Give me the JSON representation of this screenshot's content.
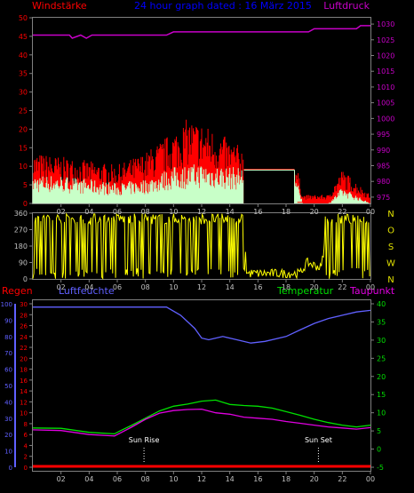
{
  "header": {
    "left_label": "Windstärke",
    "title": "24 hour graph dated : 16 März 2015",
    "right_label": "Luftdruck"
  },
  "colors": {
    "wind_avg": "#c8ffc8",
    "wind_gust": "#ff0000",
    "pressure": "#c800c8",
    "wind_dir": "#ffff00",
    "humidity": "#6060ff",
    "temperature": "#00e000",
    "dewpoint": "#e000e0",
    "rain": "#ff0000",
    "axis_grid": "#808080",
    "left_wind_text": "#ff0000",
    "right_pressure_text": "#c800c8",
    "rain_axis_text": "#ff0000",
    "hum_axis_text": "#6060ff",
    "temp_axis_text": "#00e000"
  },
  "chart_data": [
    {
      "type": "line",
      "name": "wind-pressure",
      "left_axis": {
        "label": "Windstärke",
        "ticks": [
          "0",
          "5",
          "10",
          "15",
          "20",
          "25",
          "30",
          "35",
          "40",
          "45",
          "50"
        ],
        "ylim": [
          0,
          50
        ]
      },
      "right_axis": {
        "label": "Luftdruck",
        "ticks": [
          "975",
          "980",
          "985",
          "990",
          "995",
          "1000",
          "1005",
          "1010",
          "1015",
          "1020",
          "1025",
          "1030"
        ],
        "ylim": [
          973,
          1032
        ]
      },
      "x_ticks": [
        "02",
        "04",
        "06",
        "08",
        "10",
        "12",
        "14",
        "16",
        "18",
        "20",
        "22",
        "00"
      ],
      "pressure": {
        "x": [
          0,
          2.6,
          2.8,
          3.4,
          3.8,
          4.2,
          9.5,
          10.0,
          16.0,
          19.6,
          20.0,
          23.0,
          23.3,
          24.0
        ],
        "y": [
          1026.5,
          1026.5,
          1025.5,
          1026.5,
          1025.5,
          1026.5,
          1026.5,
          1027.5,
          1027.5,
          1027.5,
          1028.5,
          1028.5,
          1029.5,
          1029.5
        ]
      },
      "wind_avg_envelope": {
        "x": [
          0,
          2,
          4,
          6,
          8,
          10,
          12,
          14,
          15,
          18.5,
          19.2,
          21,
          22,
          23,
          24
        ],
        "y": [
          7,
          7,
          6,
          5,
          6,
          9,
          10,
          9,
          9,
          9,
          0,
          0,
          4,
          2,
          0
        ]
      },
      "wind_gust_envelope": {
        "x": [
          0,
          2,
          4,
          6,
          8,
          10,
          11,
          12,
          13,
          14,
          15,
          18.5,
          19.2,
          21,
          22,
          23,
          24
        ],
        "y": [
          12,
          11,
          10,
          9,
          12,
          17,
          20,
          19,
          17,
          15,
          13,
          13,
          2,
          2,
          8,
          5,
          2
        ]
      },
      "wind_plateau": {
        "x_start": 15.0,
        "x_end": 18.6,
        "value": 9
      }
    },
    {
      "type": "line",
      "name": "wind-direction",
      "left_ticks": [
        "0",
        "90",
        "180",
        "270",
        "360"
      ],
      "right_labels": [
        "N",
        "W",
        "S",
        "O",
        "N"
      ],
      "ylim": [
        0,
        360
      ],
      "x_ticks": [
        "02",
        "04",
        "06",
        "08",
        "10",
        "12",
        "14",
        "16",
        "18",
        "20",
        "22",
        "00"
      ],
      "summary": {
        "x": [
          0,
          15,
          15.2,
          19.0,
          19.5,
          20.5,
          21,
          24
        ],
        "y": [
          340,
          340,
          30,
          30,
          90,
          60,
          340,
          340
        ]
      }
    },
    {
      "type": "line",
      "name": "weather",
      "header_labels": [
        "Regen",
        "Luftfeuchte",
        "Temperatur",
        "Taupunkt"
      ],
      "rain_axis": {
        "label": "Regen",
        "ticks": [
          "0",
          "2",
          "4",
          "6",
          "8",
          "10",
          "12",
          "14",
          "16",
          "18",
          "20",
          "22",
          "24",
          "26",
          "28",
          "30"
        ],
        "ylim": [
          0,
          30
        ]
      },
      "humidity_axis": {
        "label": "Luftfeuchte",
        "ticks": [
          "0",
          "10",
          "20",
          "30",
          "40",
          "50",
          "60",
          "70",
          "80",
          "90",
          "100"
        ],
        "ylim": [
          0,
          100
        ]
      },
      "temp_axis": {
        "label": "Temperatur",
        "ticks": [
          "-5",
          "0",
          "5",
          "10",
          "15",
          "20",
          "25",
          "30",
          "35",
          "40"
        ],
        "ylim": [
          -5,
          40
        ]
      },
      "x_ticks": [
        "02",
        "04",
        "06",
        "08",
        "10",
        "12",
        "14",
        "16",
        "18",
        "20",
        "22",
        "00"
      ],
      "humidity": {
        "x": [
          0,
          9.5,
          10.5,
          11.5,
          12.0,
          12.5,
          13.5,
          14.5,
          15.5,
          16.5,
          18.0,
          19.0,
          20.0,
          21.0,
          22.0,
          23.0,
          24.0
        ],
        "y": [
          98,
          98,
          93,
          85,
          79,
          78,
          80,
          78,
          76,
          77,
          80,
          84,
          88,
          91,
          93,
          95,
          96
        ]
      },
      "temperature": {
        "x": [
          0,
          2,
          4,
          5.8,
          6.2,
          7,
          8,
          9,
          10,
          11,
          12,
          13,
          14,
          15,
          16,
          17,
          18,
          19,
          20,
          21,
          22,
          23,
          24
        ],
        "y": [
          5.8,
          5.7,
          4.6,
          4.2,
          5.0,
          6.5,
          8.5,
          10.5,
          11.8,
          12.4,
          13.2,
          13.5,
          12.3,
          12.0,
          11.8,
          11.3,
          10.3,
          9.3,
          8.2,
          7.3,
          6.6,
          6.1,
          6.6
        ]
      },
      "dewpoint": {
        "x": [
          0,
          2,
          4,
          5.8,
          6.2,
          7,
          8,
          9,
          10,
          11,
          12,
          13,
          14,
          15,
          16,
          17,
          18,
          19,
          20,
          21,
          22,
          23,
          24
        ],
        "y": [
          5.3,
          5.1,
          4.0,
          3.6,
          4.4,
          6.0,
          8.2,
          9.9,
          10.6,
          10.9,
          11.0,
          10.0,
          9.6,
          8.8,
          8.5,
          8.2,
          7.6,
          7.1,
          6.6,
          6.1,
          5.8,
          5.5,
          5.9
        ]
      },
      "rain": {
        "x": [
          0,
          24
        ],
        "y": [
          0,
          0
        ]
      },
      "markers": [
        {
          "label": "Sun Rise",
          "x": 7.9
        },
        {
          "label": "Sun Set",
          "x": 20.3
        }
      ]
    }
  ]
}
